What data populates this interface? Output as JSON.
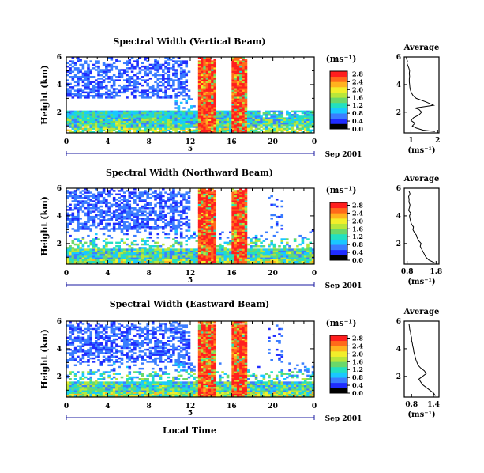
{
  "figure": {
    "date_label": "Sep 2001",
    "shared_xlabel": "Local Time",
    "height_label": "Height (km)",
    "unit_label": "(ms⁻¹)",
    "average_title": "Average",
    "day_marker": "5",
    "time_ticks": [
      "0",
      "4",
      "8",
      "12",
      "16",
      "20",
      "0"
    ],
    "height_ticks": [
      "2",
      "4",
      "6"
    ]
  },
  "chart_data": [
    {
      "type": "heatmap",
      "title": "Spectral Width (Vertical Beam)",
      "ylabel": "Height (km)",
      "xlabel": "",
      "x_range": [
        0,
        24
      ],
      "y_range": [
        0.5,
        6
      ],
      "colorbar": {
        "label": "(ms⁻¹)",
        "ticks": [
          "0.0",
          "0.4",
          "0.8",
          "1.2",
          "1.6",
          "2.0",
          "2.4",
          "2.8"
        ],
        "range": [
          0,
          2.8
        ]
      },
      "colors": [
        "#000000",
        "#1f2cff",
        "#3a7dff",
        "#19c8ff",
        "#22e0c0",
        "#6ad86a",
        "#b8e63a",
        "#f2ee2a",
        "#ffb21e",
        "#ff6a1a",
        "#ff1e1e"
      ]
    },
    {
      "type": "heatmap",
      "title": "Spectral Width (Northward Beam)",
      "ylabel": "Height (km)",
      "xlabel": "",
      "x_range": [
        0,
        24
      ],
      "y_range": [
        0.5,
        6
      ],
      "colorbar": {
        "label": "(ms⁻¹)",
        "ticks": [
          "0.0",
          "0.4",
          "0.8",
          "1.2",
          "1.6",
          "2.0",
          "2.4",
          "2.8"
        ],
        "range": [
          0,
          2.8
        ]
      }
    },
    {
      "type": "heatmap",
      "title": "Spectral Width (Eastward Beam)",
      "ylabel": "Height (km)",
      "xlabel": "Local Time",
      "x_range": [
        0,
        24
      ],
      "y_range": [
        0.5,
        6
      ],
      "colorbar": {
        "label": "(ms⁻¹)",
        "ticks": [
          "0.0",
          "0.4",
          "0.8",
          "1.2",
          "1.6",
          "2.0",
          "2.4",
          "2.8"
        ],
        "range": [
          0,
          2.8
        ]
      }
    },
    {
      "type": "line",
      "title": "Average",
      "xlabel": "(ms⁻¹)",
      "ylabel": "",
      "xlim": [
        0.75,
        2.05
      ],
      "ylim": [
        0.5,
        6
      ],
      "x_ticks": [
        "1",
        "2"
      ],
      "y_ticks": [
        "2",
        "4",
        "6"
      ],
      "series": [
        {
          "x": [
            1.9,
            1.45,
            1.2,
            1.05,
            1.15,
            1.0,
            1.1,
            1.3,
            1.4,
            1.3,
            1.15,
            1.85,
            1.55,
            1.2,
            1.08,
            1.02,
            0.98,
            0.96,
            0.95,
            0.94,
            0.94,
            0.95,
            0.94,
            0.95,
            0.92,
            0.88,
            0.86,
            0.85,
            0.87,
            0.84,
            0.83
          ],
          "y": [
            0.6,
            0.7,
            0.85,
            1.0,
            1.2,
            1.4,
            1.6,
            1.8,
            2.0,
            2.2,
            2.3,
            2.5,
            2.75,
            3.0,
            3.2,
            3.4,
            3.6,
            3.8,
            4.0,
            4.2,
            4.4,
            4.6,
            4.8,
            5.0,
            5.2,
            5.4,
            5.5,
            5.6,
            5.7,
            5.85,
            6.0
          ]
        }
      ]
    },
    {
      "type": "line",
      "title": "Average",
      "xlabel": "(ms⁻¹)",
      "ylabel": "",
      "xlim": [
        0.7,
        1.9
      ],
      "ylim": [
        0.5,
        6
      ],
      "x_ticks": [
        "0.8",
        "1.8"
      ],
      "y_ticks": [
        "2",
        "4",
        "6"
      ],
      "series": [
        {
          "x": [
            1.75,
            1.55,
            1.45,
            1.4,
            1.35,
            1.3,
            1.25,
            1.28,
            1.2,
            1.15,
            1.12,
            1.05,
            1.0,
            1.02,
            0.95,
            0.92,
            0.9,
            0.88,
            0.92,
            0.85,
            0.88,
            0.9,
            0.86,
            0.87,
            0.85,
            0.9,
            0.86
          ],
          "y": [
            0.6,
            0.8,
            1.0,
            1.2,
            1.4,
            1.6,
            1.8,
            2.0,
            2.2,
            2.4,
            2.6,
            2.8,
            3.0,
            3.2,
            3.4,
            3.6,
            3.8,
            4.0,
            4.2,
            4.4,
            4.6,
            4.8,
            5.0,
            5.2,
            5.4,
            5.6,
            5.8
          ]
        }
      ]
    },
    {
      "type": "line",
      "title": "Average",
      "xlabel": "(ms⁻¹)",
      "ylabel": "",
      "xlim": [
        0.6,
        1.55
      ],
      "ylim": [
        0.5,
        6
      ],
      "x_ticks": [
        "0.8",
        "1.4"
      ],
      "y_ticks": [
        "2",
        "4",
        "6"
      ],
      "series": [
        {
          "x": [
            1.45,
            1.4,
            1.3,
            1.2,
            1.1,
            1.05,
            1.0,
            1.1,
            1.2,
            1.15,
            1.05,
            0.98,
            0.95,
            0.92,
            0.9,
            0.88,
            0.86,
            0.85,
            0.83,
            0.82,
            0.8,
            0.8,
            0.78,
            0.77,
            0.75,
            0.74,
            0.73
          ],
          "y": [
            0.6,
            0.8,
            1.0,
            1.2,
            1.4,
            1.6,
            1.8,
            2.0,
            2.2,
            2.4,
            2.6,
            2.8,
            3.0,
            3.2,
            3.4,
            3.6,
            3.8,
            4.0,
            4.2,
            4.4,
            4.6,
            4.8,
            5.0,
            5.2,
            5.4,
            5.6,
            5.8
          ]
        }
      ]
    }
  ]
}
